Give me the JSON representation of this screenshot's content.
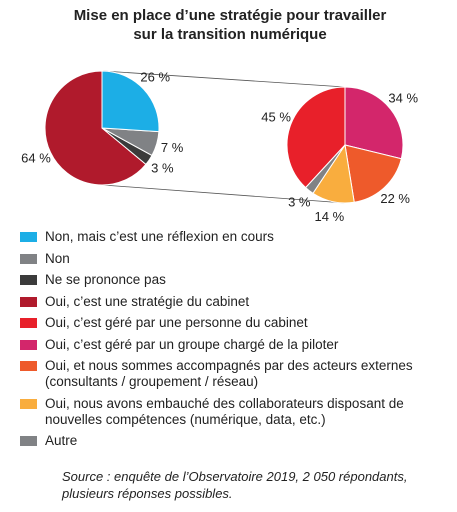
{
  "title": "Mise en place d’une stratégie pour travailler sur la transition numérique",
  "source": "Source : enquête de l’Observatoire 2019, 2 050 répondants, plusieurs réponses possibles.",
  "chart_data": [
    {
      "type": "pie",
      "categories": [
        "Non, mais c’est une réflexion en cours",
        "Non",
        "Ne se prononce pas",
        "Oui, c’est une stratégie du cabinet"
      ],
      "values": [
        26,
        7,
        3,
        64
      ],
      "value_labels": [
        "26 %",
        "7 %",
        "3 %",
        "64 %"
      ],
      "colors": [
        "#1caee6",
        "#808285",
        "#3b3b3b",
        "#b01a2c"
      ]
    },
    {
      "type": "pie",
      "categories": [
        "Oui, c’est géré par une personne du cabinet",
        "Oui, c’est géré par un groupe chargé de la piloter",
        "Oui, et nous sommes accompagnés par des acteurs externes (consultants / groupement / réseau)",
        "Oui, nous avons embauché des collaborateurs disposant de nouvelles compétences (numérique, data, etc.)",
        "Autre"
      ],
      "values": [
        45,
        34,
        22,
        14,
        3
      ],
      "value_labels": [
        "45 %",
        "34 %",
        "22 %",
        "14 %",
        "3 %"
      ],
      "colors": [
        "#e8202a",
        "#d3266b",
        "#ee5a2b",
        "#f9ad3e",
        "#808285"
      ]
    }
  ]
}
